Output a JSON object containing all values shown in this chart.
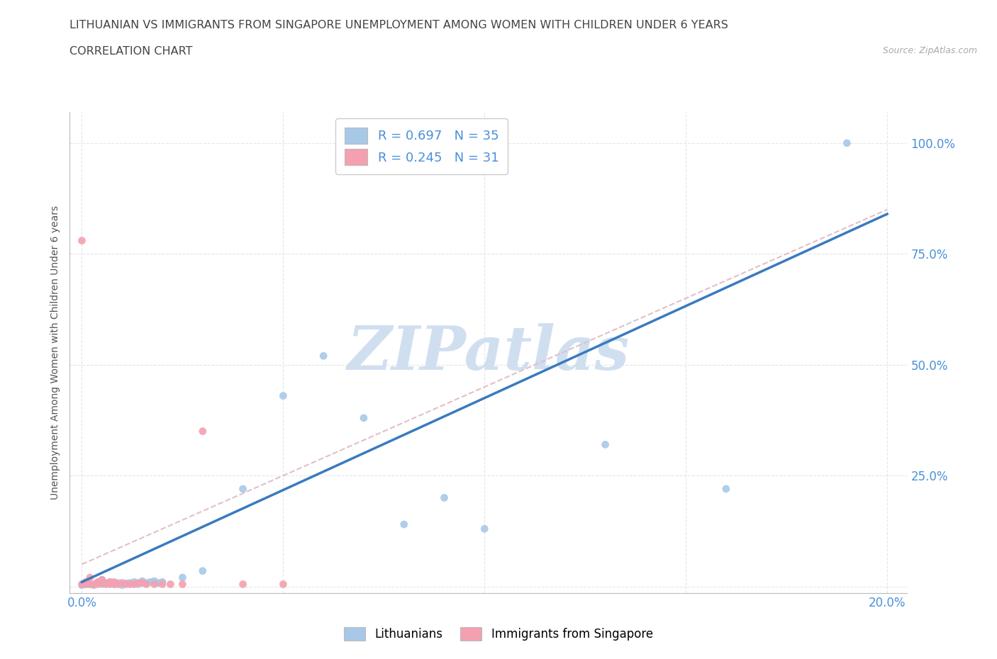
{
  "title_line1": "LITHUANIAN VS IMMIGRANTS FROM SINGAPORE UNEMPLOYMENT AMONG WOMEN WITH CHILDREN UNDER 6 YEARS",
  "title_line2": "CORRELATION CHART",
  "source_text": "Source: ZipAtlas.com",
  "ylabel": "Unemployment Among Women with Children Under 6 years",
  "legend_R1": "R = 0.697",
  "legend_N1": "N = 35",
  "legend_R2": "R = 0.245",
  "legend_N2": "N = 31",
  "blue_color": "#a8c8e8",
  "pink_color": "#f4a0b0",
  "blue_line_color": "#3a7abf",
  "pink_line_color": "#e0c0c8",
  "watermark_text": "ZIPatlas",
  "watermark_color": "#d0dff0",
  "background_color": "#ffffff",
  "grid_color": "#e0e0e0",
  "xlim": [
    -0.003,
    0.205
  ],
  "ylim": [
    -0.015,
    1.07
  ],
  "blue_scatter_x": [
    0.0,
    0.001,
    0.001,
    0.002,
    0.003,
    0.004,
    0.005,
    0.005,
    0.006,
    0.007,
    0.008,
    0.009,
    0.01,
    0.011,
    0.012,
    0.013,
    0.014,
    0.015,
    0.016,
    0.017,
    0.018,
    0.019,
    0.02,
    0.025,
    0.03,
    0.04,
    0.05,
    0.06,
    0.07,
    0.08,
    0.09,
    0.1,
    0.13,
    0.16,
    0.19
  ],
  "blue_scatter_y": [
    0.003,
    0.005,
    0.01,
    0.005,
    0.003,
    0.01,
    0.005,
    0.015,
    0.008,
    0.01,
    0.005,
    0.008,
    0.003,
    0.007,
    0.008,
    0.01,
    0.005,
    0.012,
    0.008,
    0.01,
    0.012,
    0.008,
    0.01,
    0.02,
    0.035,
    0.22,
    0.43,
    0.52,
    0.38,
    0.14,
    0.2,
    0.13,
    0.32,
    0.22,
    1.0
  ],
  "pink_scatter_x": [
    0.0,
    0.0,
    0.001,
    0.001,
    0.002,
    0.002,
    0.003,
    0.004,
    0.004,
    0.005,
    0.005,
    0.006,
    0.007,
    0.007,
    0.008,
    0.008,
    0.009,
    0.01,
    0.011,
    0.012,
    0.013,
    0.014,
    0.015,
    0.016,
    0.018,
    0.02,
    0.022,
    0.025,
    0.03,
    0.04,
    0.05
  ],
  "pink_scatter_y": [
    0.78,
    0.005,
    0.005,
    0.01,
    0.005,
    0.02,
    0.005,
    0.005,
    0.01,
    0.008,
    0.015,
    0.005,
    0.005,
    0.01,
    0.005,
    0.01,
    0.005,
    0.008,
    0.005,
    0.005,
    0.005,
    0.008,
    0.008,
    0.005,
    0.005,
    0.005,
    0.005,
    0.005,
    0.35,
    0.005,
    0.005
  ],
  "blue_trend_x": [
    0.0,
    0.2
  ],
  "blue_trend_y": [
    0.01,
    0.84
  ],
  "pink_trend_x": [
    0.0,
    0.2
  ],
  "pink_trend_y": [
    0.05,
    0.85
  ]
}
